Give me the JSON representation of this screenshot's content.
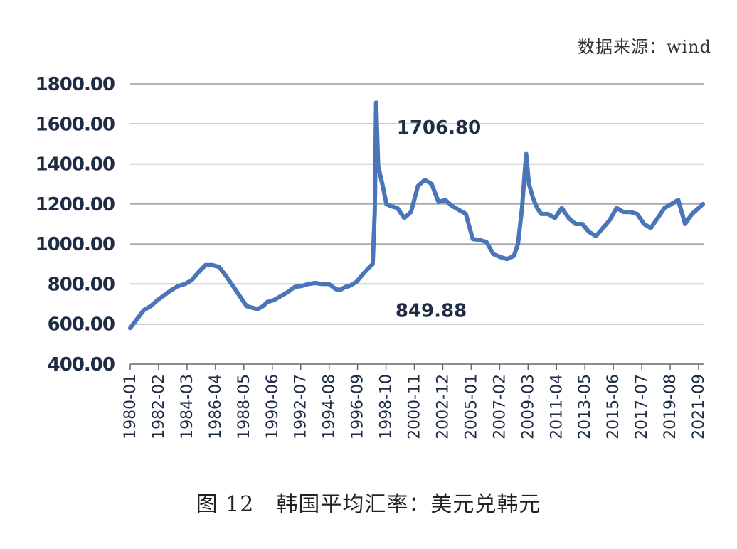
{
  "source_text": "数据来源：wind",
  "caption": "图 12　韩国平均汇率：美元兑韩元",
  "colors": {
    "line": "#4a76b9",
    "grid": "#9a9a9a",
    "text": "#1e2c44"
  },
  "chart_data": {
    "type": "line",
    "title": "",
    "xlabel": "",
    "ylabel": "",
    "ylim": [
      400,
      1800
    ],
    "yticks": [
      "400.00",
      "600.00",
      "800.00",
      "1000.00",
      "1200.00",
      "1400.00",
      "1600.00",
      "1800.00"
    ],
    "grid": true,
    "legend": "none",
    "xtick_labels": [
      "1980-01",
      "1982-02",
      "1984-03",
      "1986-04",
      "1988-05",
      "1990-06",
      "1992-07",
      "1994-08",
      "1996-09",
      "1998-10",
      "2000-11",
      "2002-12",
      "2005-01",
      "2007-02",
      "2009-03",
      "2011-04",
      "2013-05",
      "2015-06",
      "2017-07",
      "2019-08",
      "2021-09"
    ],
    "annotations": [
      {
        "text": "1706.80",
        "x": 1997.9,
        "y": 1706.8
      },
      {
        "text": "849.88",
        "x": 1997.8,
        "y": 849.88
      }
    ],
    "series": [
      {
        "x": [
          1980.0,
          1980.5,
          1981.0,
          1981.5,
          1982.0,
          1982.5,
          1983.0,
          1983.5,
          1984.0,
          1984.5,
          1985.0,
          1985.5,
          1986.0,
          1986.5,
          1987.0,
          1987.5,
          1988.0,
          1988.5,
          1989.0,
          1989.3,
          1989.7,
          1990.0,
          1990.5,
          1991.0,
          1991.5,
          1992.0,
          1992.5,
          1993.0,
          1993.5,
          1994.0,
          1994.5,
          1995.0,
          1995.3,
          1995.7,
          1996.0,
          1996.5,
          1997.0,
          1997.4,
          1997.7,
          1997.85,
          1997.95,
          1998.1,
          1998.4,
          1998.7,
          1999.0,
          1999.5,
          2000.0,
          2000.5,
          2001.0,
          2001.5,
          2002.0,
          2002.5,
          2003.0,
          2003.5,
          2004.0,
          2004.5,
          2005.0,
          2005.5,
          2006.0,
          2006.5,
          2007.0,
          2007.5,
          2008.0,
          2008.3,
          2008.6,
          2008.9,
          2009.1,
          2009.4,
          2009.7,
          2010.0,
          2010.5,
          2011.0,
          2011.5,
          2012.0,
          2012.5,
          2013.0,
          2013.5,
          2014.0,
          2014.5,
          2015.0,
          2015.5,
          2016.0,
          2016.5,
          2017.0,
          2017.5,
          2018.0,
          2018.5,
          2019.0,
          2019.5,
          2020.0,
          2020.5,
          2021.0,
          2021.5,
          2021.8
        ],
        "y": [
          580,
          625,
          670,
          690,
          720,
          745,
          770,
          790,
          800,
          820,
          860,
          895,
          895,
          885,
          840,
          790,
          740,
          690,
          680,
          675,
          690,
          710,
          720,
          740,
          760,
          785,
          790,
          800,
          805,
          800,
          800,
          775,
          770,
          785,
          790,
          810,
          850,
          880,
          900,
          1160,
          1706.8,
          1390,
          1300,
          1200,
          1190,
          1180,
          1130,
          1160,
          1290,
          1320,
          1300,
          1210,
          1220,
          1190,
          1170,
          1150,
          1025,
          1020,
          1010,
          950,
          935,
          925,
          940,
          1000,
          1180,
          1450,
          1300,
          1230,
          1180,
          1150,
          1150,
          1130,
          1180,
          1130,
          1100,
          1100,
          1060,
          1040,
          1080,
          1120,
          1180,
          1160,
          1160,
          1150,
          1100,
          1080,
          1130,
          1180,
          1200,
          1220,
          1100,
          1150,
          1180,
          1200
        ]
      }
    ]
  }
}
